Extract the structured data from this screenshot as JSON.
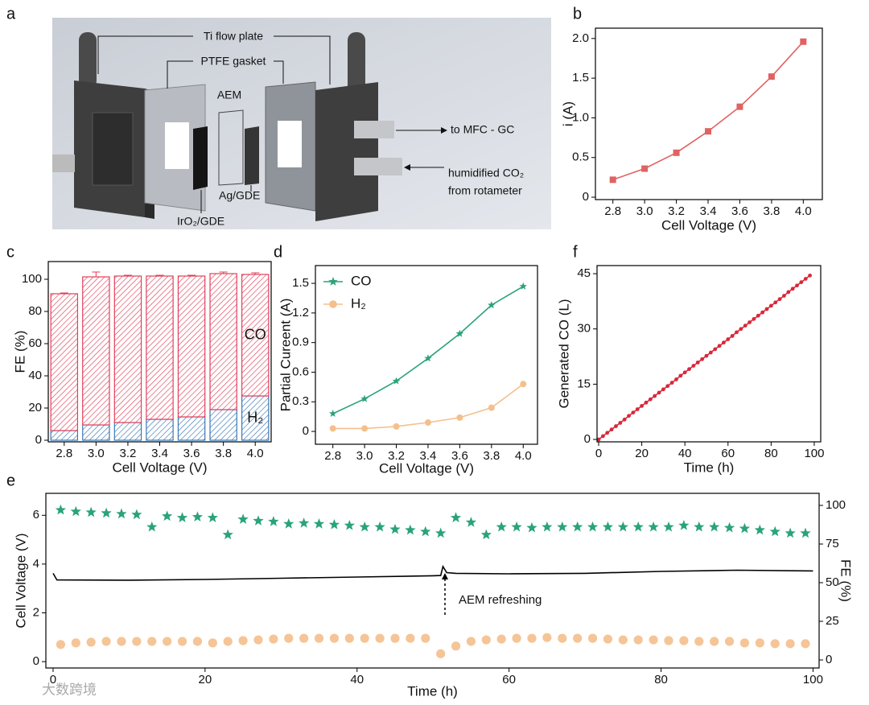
{
  "diagram": {
    "panel": "a",
    "ti_plate": "Ti flow plate",
    "gasket": "PTFE gasket",
    "membrane": "AEM",
    "outlet": "to MFC - GC",
    "inlet_1": "humidified CO₂",
    "inlet_2": "from rotameter",
    "cathode": "Ag/GDE",
    "anode": "IrO₂/GDE"
  },
  "watermark": "大数跨境",
  "chart_data": [
    {
      "panel": "b",
      "type": "line",
      "xlabel": "Cell Voltage (V)",
      "ylabel": "i (A)",
      "x": [
        2.8,
        3.0,
        3.2,
        3.4,
        3.6,
        3.8,
        4.0
      ],
      "series": [
        {
          "color": "#e06262",
          "marker": "square",
          "values": [
            0.22,
            0.36,
            0.56,
            0.83,
            1.14,
            1.52,
            1.96
          ]
        }
      ],
      "xlim": [
        2.69,
        4.12
      ],
      "xticks": [
        2.8,
        {
          "value": 3,
          "label": "3.0"
        },
        3.2,
        3.4,
        3.6,
        3.8,
        {
          "value": 4,
          "label": "4.0"
        }
      ],
      "ylim": [
        -0.03,
        2.13
      ],
      "yticks": [
        0,
        0.5,
        {
          "value": 1,
          "label": "1.0"
        },
        1.5,
        {
          "value": 2,
          "label": "2.0"
        }
      ]
    },
    {
      "panel": "c",
      "type": "bar",
      "stacked": true,
      "hatch": true,
      "legend": "inline",
      "xlabel": "Cell Voltage (V)",
      "ylabel": "FE (%)",
      "categories": [
        "2.8",
        "3.0",
        "3.2",
        "3.4",
        "3.6",
        "3.8",
        "4.0"
      ],
      "series": [
        {
          "name": "H₂",
          "color": "#3a78b5",
          "values": [
            6,
            9.5,
            11,
            13,
            14.5,
            19,
            27.5
          ]
        },
        {
          "name": "CO",
          "color": "#e0405a",
          "values": [
            85,
            92,
            91,
            89,
            87.5,
            84.5,
            75.5
          ],
          "errors": [
            0.5,
            3,
            0.5,
            0.5,
            0.5,
            1,
            1
          ]
        }
      ],
      "ylim": [
        -1,
        111
      ],
      "yticks": [
        0,
        20,
        40,
        60,
        80,
        100
      ]
    },
    {
      "panel": "d",
      "type": "line",
      "legend": "upper left",
      "xlabel": "Cell Voltage (V)",
      "ylabel": "Partial Cureent (A)",
      "x": [
        2.8,
        3.0,
        3.2,
        3.4,
        3.6,
        3.8,
        4.0
      ],
      "series": [
        {
          "name": "CO",
          "color": "#2aa37a",
          "marker": "star",
          "values": [
            0.18,
            0.33,
            0.51,
            0.74,
            0.99,
            1.28,
            1.47
          ]
        },
        {
          "name": "H₂",
          "color": "#f5bf8c",
          "marker": "circle",
          "values": [
            0.03,
            0.03,
            0.05,
            0.09,
            0.14,
            0.24,
            0.48
          ]
        }
      ],
      "xlim": [
        2.69,
        4.09
      ],
      "xticks": [
        2.8,
        {
          "value": 3,
          "label": "3.0"
        },
        3.2,
        3.4,
        3.6,
        3.8,
        {
          "value": 4,
          "label": "4.0"
        }
      ],
      "ylim": [
        -0.13,
        1.68
      ],
      "yticks": [
        0,
        0.3,
        0.6,
        0.9,
        1.2,
        1.5
      ]
    },
    {
      "panel": "f",
      "type": "line",
      "xlabel": "Time (h)",
      "ylabel": "Generated CO (L)",
      "x": [
        0,
        2,
        4,
        6,
        8,
        10,
        12,
        14,
        16,
        18,
        20,
        22,
        24,
        26,
        28,
        30,
        32,
        34,
        36,
        38,
        40,
        42,
        44,
        46,
        48,
        50,
        52,
        54,
        56,
        58,
        60,
        62,
        64,
        66,
        68,
        70,
        72,
        74,
        76,
        78,
        80,
        82,
        84,
        86,
        88,
        90,
        92,
        94,
        96,
        98
      ],
      "series": [
        {
          "color": "#d8283a",
          "marker": "circle",
          "values": [
            0,
            0.9,
            1.8,
            2.7,
            3.6,
            4.5,
            5.4,
            6.4,
            7.3,
            8.2,
            9.1,
            10.0,
            10.9,
            11.8,
            12.7,
            13.6,
            14.5,
            15.4,
            16.3,
            17.3,
            18.2,
            19.1,
            20.0,
            20.9,
            21.8,
            22.7,
            23.6,
            24.5,
            25.4,
            26.3,
            27.2,
            28.1,
            29.1,
            30.0,
            30.9,
            31.8,
            32.7,
            33.6,
            34.5,
            35.4,
            36.3,
            37.2,
            38.1,
            39.0,
            40.0,
            40.9,
            41.8,
            42.7,
            43.6,
            44.5
          ]
        }
      ],
      "xlim": [
        -0.75,
        103
      ],
      "xticks": [
        0,
        20,
        40,
        60,
        80,
        100
      ],
      "ylim": [
        -0.65,
        47.2
      ],
      "yticks": [
        0,
        15,
        30,
        45
      ]
    },
    {
      "panel": "e",
      "type": "line",
      "xlabel": "Time (h)",
      "ylabel": "Cell Voltage (V)",
      "y2label": "FE (%)",
      "annotation": "AEM refreshing",
      "series": [
        {
          "color": "#000000",
          "marker": "none",
          "x": [
            0,
            0.5,
            10,
            20,
            30,
            40,
            50,
            51,
            51.3,
            51.8,
            53,
            60,
            70,
            80,
            90,
            100
          ],
          "values": [
            3.62,
            3.35,
            3.34,
            3.37,
            3.42,
            3.47,
            3.52,
            3.53,
            3.9,
            3.65,
            3.62,
            3.6,
            3.62,
            3.7,
            3.75,
            3.72
          ]
        },
        {
          "color": "#2aa37a",
          "marker": "star",
          "line": false,
          "axis": "y2",
          "x": [
            1,
            3,
            5,
            7,
            9,
            11,
            13,
            15,
            17,
            19,
            21,
            23,
            25,
            27,
            29,
            31,
            33,
            35,
            37,
            39,
            41,
            43,
            45,
            47,
            49,
            51,
            53,
            55,
            57,
            59,
            61,
            63,
            65,
            67,
            69,
            71,
            73,
            75,
            77,
            79,
            81,
            83,
            85,
            87,
            89,
            91,
            93,
            95,
            97,
            99
          ],
          "values": [
            97,
            96,
            95.5,
            95,
            94.5,
            94,
            86,
            93,
            92,
            92.5,
            92,
            81,
            91,
            90,
            89.5,
            88,
            88.5,
            88,
            87.5,
            87,
            86,
            86,
            84.5,
            84,
            83,
            82,
            92,
            89,
            81,
            86,
            86,
            85.5,
            86,
            86,
            86,
            86,
            86,
            86,
            86,
            86,
            86,
            87,
            86,
            86,
            85.5,
            85,
            84,
            83,
            82,
            82
          ]
        },
        {
          "color": "#f5c597",
          "marker": "circle",
          "line": false,
          "axis": "y2",
          "x": [
            1,
            3,
            5,
            7,
            9,
            11,
            13,
            15,
            17,
            19,
            21,
            23,
            25,
            27,
            29,
            31,
            33,
            35,
            37,
            39,
            41,
            43,
            45,
            47,
            49,
            51,
            53,
            55,
            57,
            59,
            61,
            63,
            65,
            67,
            69,
            71,
            73,
            75,
            77,
            79,
            81,
            83,
            85,
            87,
            89,
            91,
            93,
            95,
            97,
            99
          ],
          "values": [
            10,
            11,
            11.5,
            12,
            12,
            12,
            12,
            12,
            12,
            12,
            11,
            12,
            12.5,
            13,
            13.5,
            14,
            14,
            14,
            14,
            14,
            14,
            14,
            14,
            14,
            14,
            4,
            9,
            12,
            13,
            13.5,
            14,
            14,
            14.5,
            14,
            14,
            14,
            13.5,
            13,
            13,
            13,
            12.5,
            12.5,
            12,
            12,
            12,
            11,
            11,
            10.5,
            10.5,
            10.5
          ]
        }
      ],
      "xlim": [
        -0.95,
        100.8
      ],
      "xticks": [
        0,
        20,
        40,
        60,
        80,
        100
      ],
      "ylim": [
        -0.26,
        6.9
      ],
      "yticks": [
        0,
        2,
        4,
        6
      ],
      "y2lim": [
        -5.2,
        107.8
      ],
      "y2ticks": [
        0,
        25,
        50,
        75,
        100
      ]
    }
  ]
}
